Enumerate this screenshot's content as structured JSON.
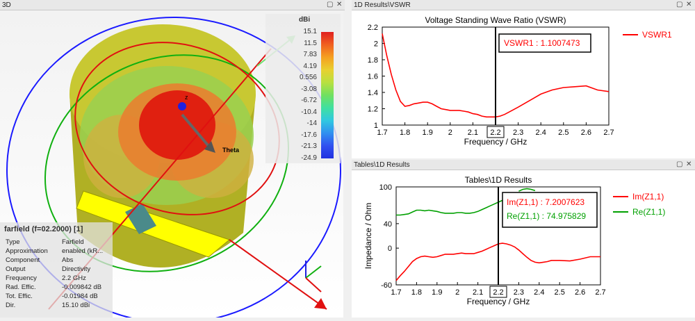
{
  "view3d": {
    "title": "3D",
    "legend": {
      "unit": "dBi",
      "ticks": [
        "15.1",
        "11.5",
        "7.83",
        "4.19",
        "0.556",
        "-3.08",
        "-6.72",
        "-10.4",
        "-14",
        "-17.6",
        "-21.3",
        "-24.9"
      ],
      "colors": [
        "#e02020",
        "#f06020",
        "#f5a020",
        "#e8d030",
        "#b8e040",
        "#70e060",
        "#40e0a0",
        "#30c8e0",
        "#3090f0",
        "#3050f0",
        "#2030e0"
      ]
    },
    "axis_labels": {
      "z": "z",
      "theta": "Theta"
    },
    "info": {
      "title": "farfield (f=02.2000) [1]",
      "rows": [
        {
          "label": "Type",
          "value": "Farfield"
        },
        {
          "label": "Approximation",
          "value": "enabled (kR..."
        },
        {
          "label": "Component",
          "value": "Abs"
        },
        {
          "label": "Output",
          "value": "Directivity"
        },
        {
          "label": "Frequency",
          "value": "2.2 GHz"
        },
        {
          "label": "Rad. Effic.",
          "value": "-0.009842 dB"
        },
        {
          "label": "Tot. Effic.",
          "value": "-0.01984 dB"
        },
        {
          "label": "Dir.",
          "value": "15.10 dBi"
        }
      ]
    },
    "colors": {
      "ground": "#c8c832",
      "substrate": "#ffff00",
      "patch": "#4a8a8a",
      "theta_circle": "#1a1aff",
      "phi_circle": "#10b010",
      "beam": "#e01010"
    }
  },
  "panel_vswr": {
    "title": "1D Results\\VSWR"
  },
  "panel_tables": {
    "title": "Tables\\1D Results"
  },
  "chart_data": [
    {
      "type": "line",
      "title": "Voltage Standing Wave Ratio (VSWR)",
      "xlabel": "Frequency / GHz",
      "ylabel": "",
      "xlim": [
        1.7,
        2.7
      ],
      "ylim": [
        1,
        2.2
      ],
      "xticks": [
        "1.7",
        "1.8",
        "1.9",
        "2",
        "2.1",
        "2.2",
        "2.3",
        "2.4",
        "2.5",
        "2.6",
        "2.7"
      ],
      "yticks": [
        "1",
        "1.2",
        "1.4",
        "1.6",
        "1.8",
        "2",
        "2.2"
      ],
      "marker_x": 2.2,
      "marker_label": "VSWR1 : 1.1007473",
      "series": [
        {
          "name": "VSWR1",
          "color": "#ff0000",
          "x": [
            1.7,
            1.72,
            1.74,
            1.76,
            1.78,
            1.8,
            1.82,
            1.84,
            1.86,
            1.88,
            1.9,
            1.92,
            1.94,
            1.96,
            1.98,
            2.0,
            2.02,
            2.04,
            2.06,
            2.08,
            2.1,
            2.12,
            2.14,
            2.16,
            2.18,
            2.2,
            2.22,
            2.24,
            2.26,
            2.28,
            2.3,
            2.35,
            2.4,
            2.45,
            2.5,
            2.55,
            2.6,
            2.65,
            2.7
          ],
          "y": [
            2.12,
            1.85,
            1.62,
            1.43,
            1.29,
            1.23,
            1.24,
            1.26,
            1.27,
            1.28,
            1.28,
            1.26,
            1.23,
            1.2,
            1.19,
            1.18,
            1.18,
            1.18,
            1.17,
            1.16,
            1.14,
            1.13,
            1.11,
            1.1,
            1.1,
            1.1,
            1.11,
            1.13,
            1.16,
            1.19,
            1.22,
            1.3,
            1.38,
            1.43,
            1.46,
            1.47,
            1.48,
            1.43,
            1.41
          ]
        }
      ]
    },
    {
      "type": "line",
      "title": "Tables\\1D Results",
      "xlabel": "Frequency / GHz",
      "ylabel": "Impedance / Ohm",
      "xlim": [
        1.7,
        2.7
      ],
      "ylim": [
        -60,
        100
      ],
      "xticks": [
        "1.7",
        "1.8",
        "1.9",
        "2",
        "2.1",
        "2.2",
        "2.3",
        "2.4",
        "2.5",
        "2.6",
        "2.7"
      ],
      "yticks": [
        "-60",
        "0",
        "40",
        "100"
      ],
      "marker_x": 2.2,
      "marker_labels": [
        {
          "text": "Im(Z1,1) : 7.2007623",
          "color": "#ff0000"
        },
        {
          "text": "Re(Z1,1) : 74.975829",
          "color": "#00a000"
        }
      ],
      "series": [
        {
          "name": "Im(Z1,1)",
          "color": "#ff0000",
          "x": [
            1.7,
            1.72,
            1.74,
            1.76,
            1.78,
            1.8,
            1.82,
            1.84,
            1.86,
            1.88,
            1.9,
            1.92,
            1.94,
            1.96,
            1.98,
            2.0,
            2.02,
            2.04,
            2.06,
            2.08,
            2.1,
            2.12,
            2.14,
            2.16,
            2.18,
            2.2,
            2.22,
            2.24,
            2.26,
            2.28,
            2.3,
            2.32,
            2.34,
            2.36,
            2.38,
            2.4,
            2.42,
            2.44,
            2.46,
            2.48,
            2.5,
            2.55,
            2.6,
            2.65,
            2.7
          ],
          "y": [
            -53,
            -45,
            -38,
            -30,
            -22,
            -17,
            -14,
            -13,
            -14,
            -15,
            -14,
            -12,
            -10,
            -10,
            -10,
            -9,
            -8,
            -9,
            -9,
            -9,
            -7,
            -5,
            -2,
            1,
            4,
            7,
            8,
            7,
            5,
            2,
            -3,
            -9,
            -15,
            -20,
            -23,
            -24,
            -23,
            -22,
            -20,
            -20,
            -20,
            -21,
            -18,
            -14,
            -14
          ]
        },
        {
          "name": "Re(Z1,1)",
          "color": "#00a000",
          "x": [
            1.7,
            1.72,
            1.74,
            1.76,
            1.78,
            1.8,
            1.82,
            1.84,
            1.86,
            1.88,
            1.9,
            1.92,
            1.94,
            1.96,
            1.98,
            2.0,
            2.02,
            2.04,
            2.06,
            2.08,
            2.1,
            2.12,
            2.14,
            2.16,
            2.18,
            2.2,
            2.22,
            2.24
          ],
          "y": [
            54,
            54,
            55,
            56,
            59,
            62,
            62,
            61,
            62,
            61,
            60,
            58,
            57,
            57,
            57,
            58,
            58,
            57,
            57,
            58,
            60,
            63,
            66,
            69,
            72,
            75,
            78,
            82
          ]
        },
        {
          "name": "",
          "color": "#00a000",
          "x": [
            2.3,
            2.32,
            2.34,
            2.36,
            2.38
          ],
          "y": [
            93,
            96,
            97,
            96,
            94
          ]
        }
      ]
    }
  ]
}
